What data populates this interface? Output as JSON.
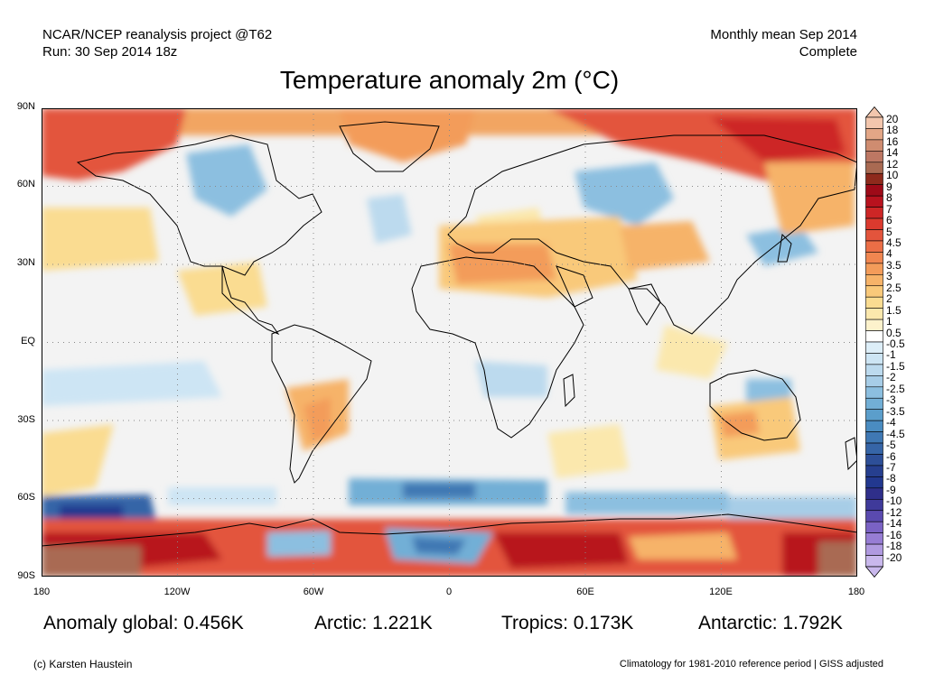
{
  "header": {
    "project": "NCAR/NCEP reanalysis project @T62",
    "run": "Run: 30 Sep 2014 18z",
    "period": "Monthly mean Sep 2014",
    "status": "Complete"
  },
  "title": "Temperature anomaly 2m (°C)",
  "map": {
    "lat_labels": [
      "90N",
      "60N",
      "30N",
      "EQ",
      "30S",
      "60S",
      "90S"
    ],
    "lon_labels": [
      "180",
      "120W",
      "60W",
      "0",
      "60E",
      "120E",
      "180"
    ],
    "colors": {
      "ocean_neutral": "#f3f3f3",
      "warm_light": "#fbe3a8",
      "warm_mid": "#f2a562",
      "warm_strong": "#d8462f",
      "warm_extreme": "#9e0a18",
      "very_warm": "#a96a52",
      "cool_light": "#cde5f4",
      "cool_mid": "#8cbfe0",
      "cool_strong": "#3f78b4",
      "cool_extreme": "#22388f"
    }
  },
  "stats": {
    "global": "Anomaly global: 0.456K",
    "arctic": "Arctic: 1.221K",
    "tropics": "Tropics: 0.173K",
    "antarctic": "Antarctic: 1.792K"
  },
  "footer": {
    "credit": "(c) Karsten Haustein",
    "note": "Climatology for 1981-2010 reference period | GISS adjusted"
  },
  "colorbar": {
    "labels": [
      "20",
      "18",
      "16",
      "14",
      "12",
      "10",
      "9",
      "8",
      "7",
      "6",
      "5",
      "4.5",
      "4",
      "3.5",
      "3",
      "2.5",
      "2",
      "1.5",
      "1",
      "0.5",
      "-0.5",
      "-1",
      "-1.5",
      "-2",
      "-2.5",
      "-3",
      "-3.5",
      "-4",
      "-4.5",
      "-5",
      "-6",
      "-7",
      "-8",
      "-9",
      "-10",
      "-12",
      "-14",
      "-16",
      "-18",
      "-20"
    ],
    "colors": [
      "#f3c6ad",
      "#e3a686",
      "#cf8c70",
      "#bd7763",
      "#a96a52",
      "#8e2a1c",
      "#9e0a18",
      "#b8121e",
      "#cd2626",
      "#db3a2e",
      "#e3543c",
      "#eb6e46",
      "#f08650",
      "#f39c5a",
      "#f6b369",
      "#f9c97a",
      "#fadc91",
      "#fbe8ad",
      "#fdf2cc",
      "#ffffff",
      "#ddeef8",
      "#cde5f4",
      "#bcdaee",
      "#a7cde7",
      "#8cbfe0",
      "#72afd6",
      "#5b9ecb",
      "#4a8cc1",
      "#3f78b4",
      "#3665a7",
      "#2d4f98",
      "#263f8f",
      "#22388f",
      "#2f2f8a",
      "#3f3a9a",
      "#5a4aaf",
      "#7a62c4",
      "#977dd4",
      "#b09ae0",
      "#c9b8ec"
    ]
  }
}
